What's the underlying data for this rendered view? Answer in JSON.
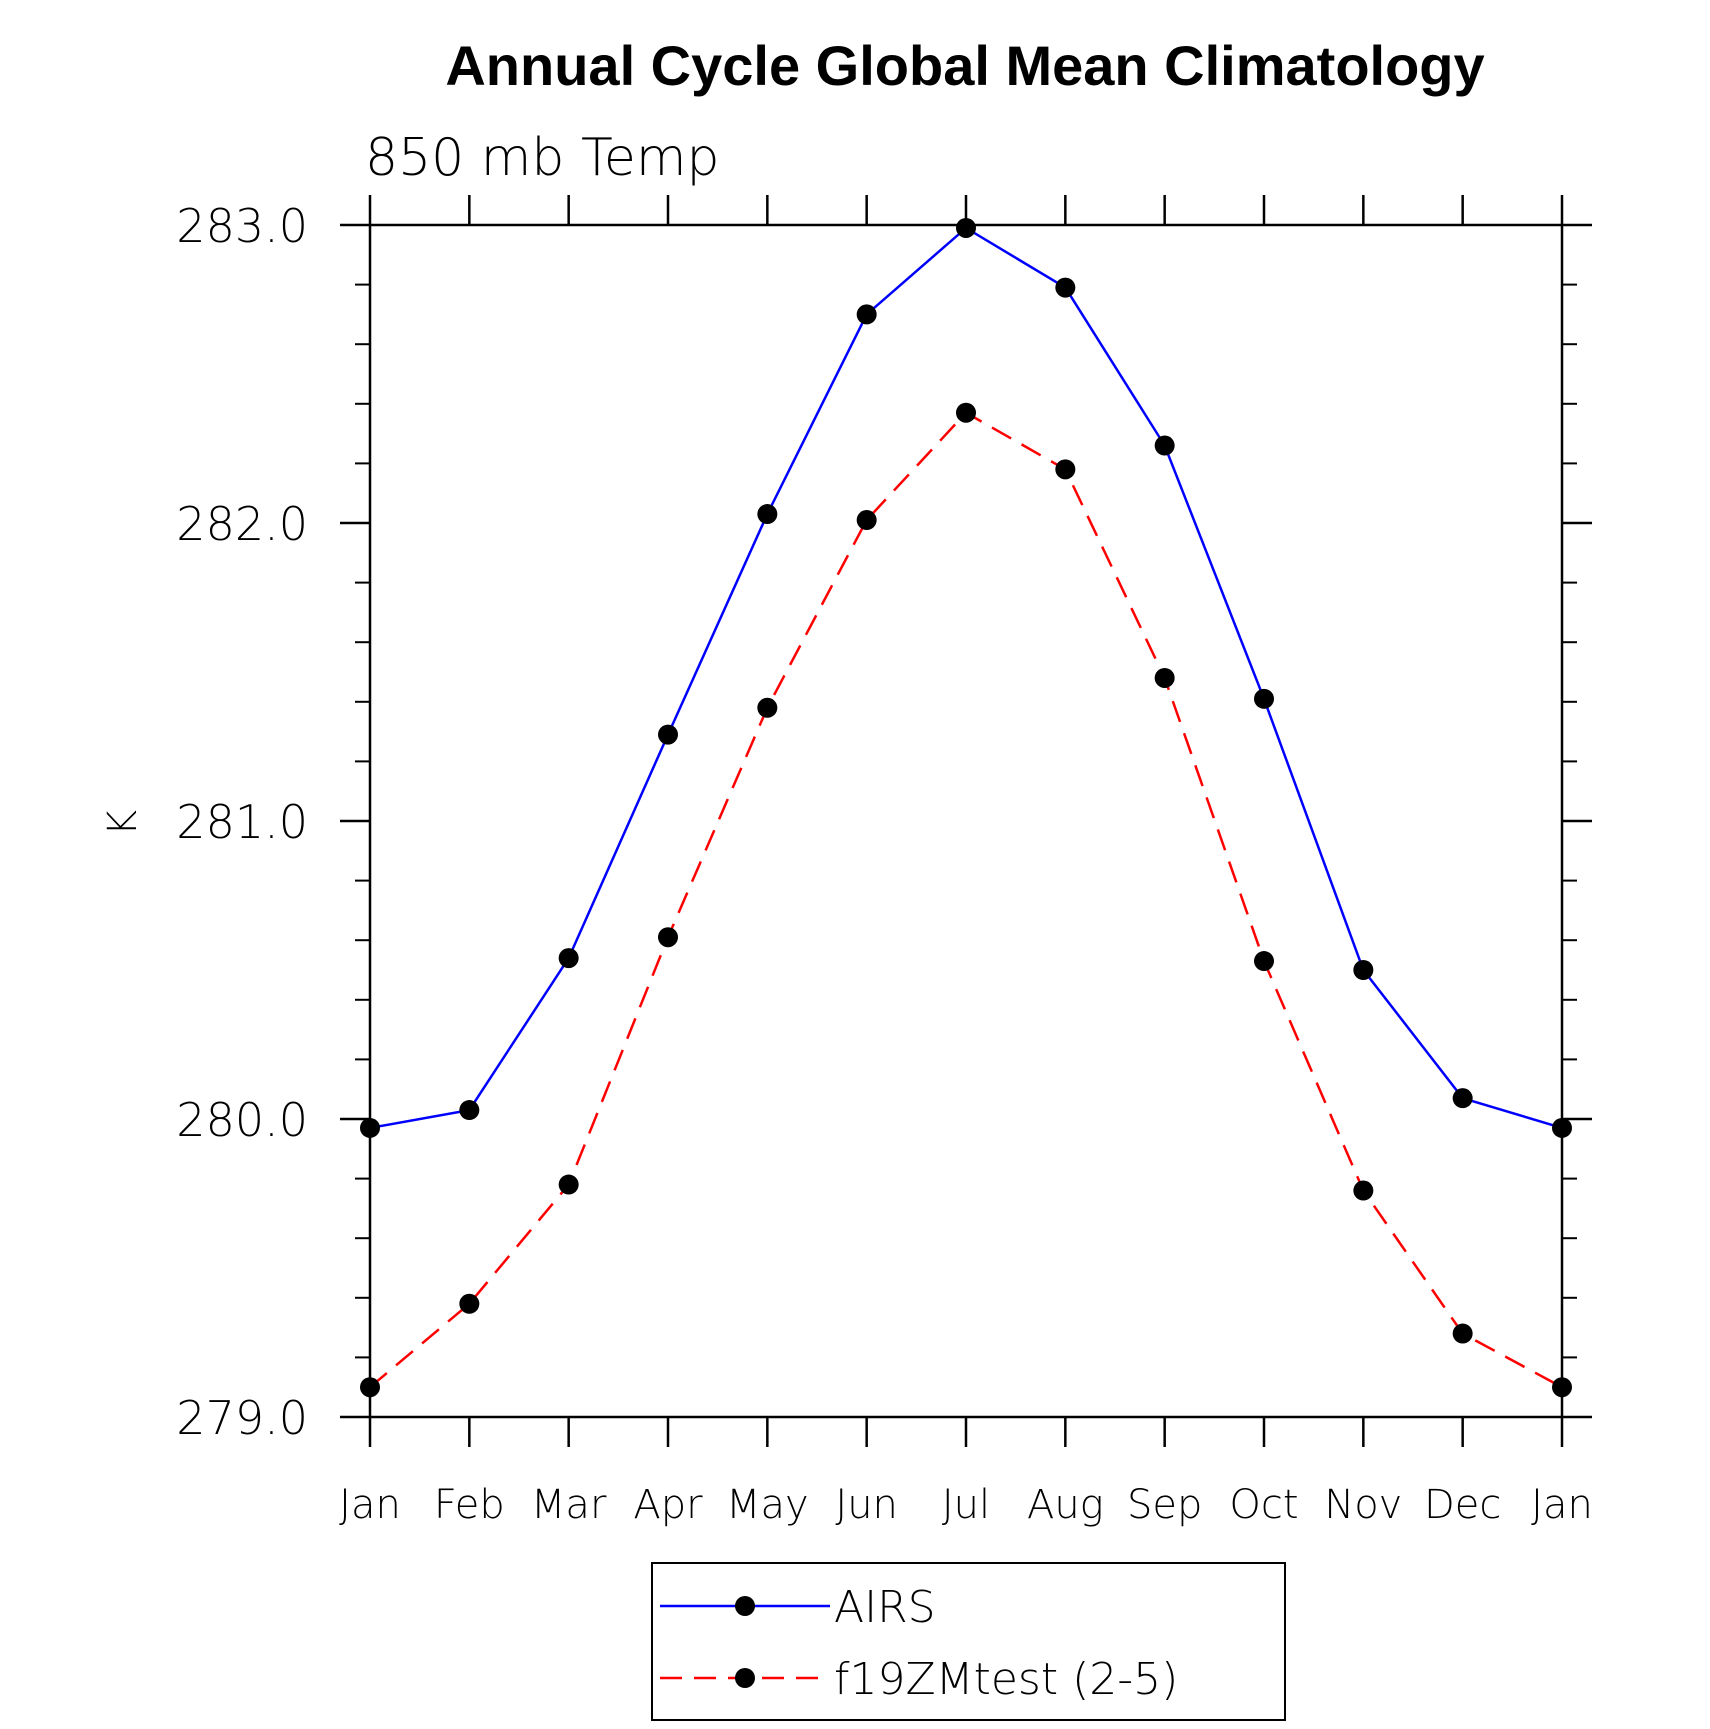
{
  "chart_data": {
    "type": "line",
    "title": "Annual Cycle Global Mean Climatology",
    "subtitle": "850 mb Temp",
    "ylabel": "K",
    "xlabel": "",
    "ylim": [
      279.0,
      283.0
    ],
    "yticks": [
      "279.0",
      "280.0",
      "281.0",
      "282.0",
      "283.0"
    ],
    "ytick_values": [
      279.0,
      280.0,
      281.0,
      282.0,
      283.0
    ],
    "categories": [
      "Jan",
      "Feb",
      "Mar",
      "Apr",
      "May",
      "Jun",
      "Jul",
      "Aug",
      "Sep",
      "Oct",
      "Nov",
      "Dec",
      "Jan"
    ],
    "grid": false,
    "legend_position": "bottom-center",
    "series": [
      {
        "name": "AIRS",
        "color": "#0000ff",
        "dash": "solid",
        "marker": "filled-circle",
        "values": [
          279.97,
          280.03,
          280.54,
          281.29,
          282.03,
          282.7,
          282.99,
          282.79,
          282.26,
          281.41,
          280.5,
          280.07,
          279.97
        ]
      },
      {
        "name": "f19ZMtest (2-5)",
        "color": "#ff0000",
        "dash": "dashed",
        "marker": "filled-circle",
        "values": [
          279.1,
          279.38,
          279.78,
          280.61,
          281.38,
          282.01,
          282.37,
          282.18,
          281.48,
          280.53,
          279.76,
          279.28,
          279.1
        ]
      }
    ]
  }
}
